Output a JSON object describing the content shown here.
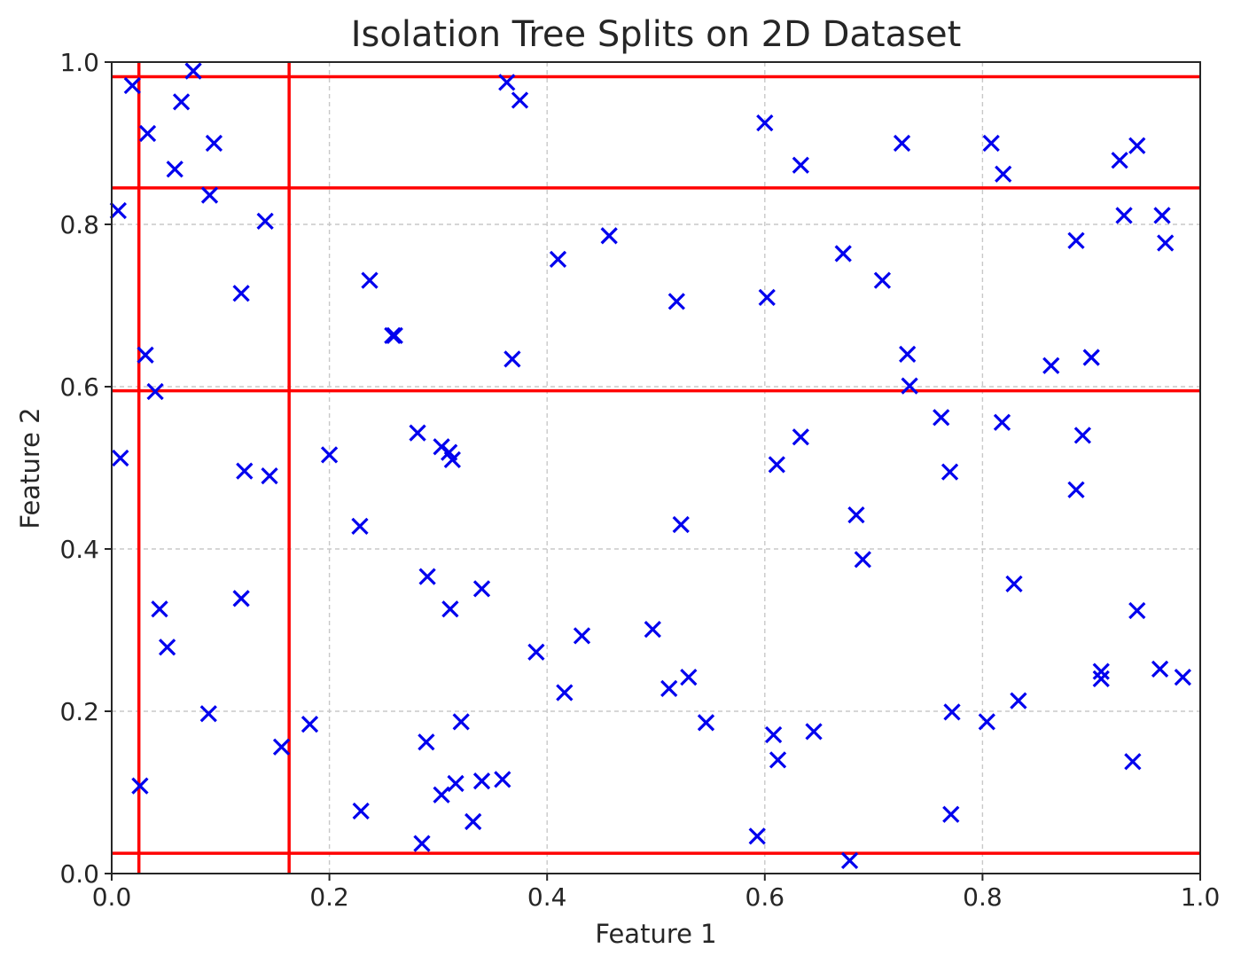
{
  "chart_data": {
    "type": "scatter",
    "title": "Isolation Tree Splits on 2D Dataset",
    "xlabel": "Feature 1",
    "ylabel": "Feature 2",
    "xlim": [
      0.0,
      1.0
    ],
    "ylim": [
      0.0,
      1.0
    ],
    "xticks": [
      "0.0",
      "0.2",
      "0.4",
      "0.6",
      "0.8",
      "1.0"
    ],
    "yticks": [
      "0.0",
      "0.2",
      "0.4",
      "0.6",
      "0.8",
      "1.0"
    ],
    "grid": true,
    "marker": "x",
    "colors": {
      "points": "#0000ee",
      "splits": "#ff0000",
      "grid": "#c8c8c8"
    },
    "vertical_splits": [
      0.025,
      0.163
    ],
    "horizontal_splits": [
      0.025,
      0.595,
      0.845,
      0.982
    ],
    "points": [
      [
        0.019,
        0.971
      ],
      [
        0.075,
        0.989
      ],
      [
        0.033,
        0.912
      ],
      [
        0.064,
        0.951
      ],
      [
        0.094,
        0.9
      ],
      [
        0.058,
        0.868
      ],
      [
        0.006,
        0.817
      ],
      [
        0.09,
        0.836
      ],
      [
        0.141,
        0.804
      ],
      [
        0.119,
        0.715
      ],
      [
        0.031,
        0.639
      ],
      [
        0.04,
        0.594
      ],
      [
        0.008,
        0.512
      ],
      [
        0.122,
        0.496
      ],
      [
        0.145,
        0.49
      ],
      [
        0.2,
        0.516
      ],
      [
        0.228,
        0.428
      ],
      [
        0.237,
        0.731
      ],
      [
        0.258,
        0.663
      ],
      [
        0.26,
        0.663
      ],
      [
        0.363,
        0.975
      ],
      [
        0.375,
        0.953
      ],
      [
        0.368,
        0.634
      ],
      [
        0.41,
        0.757
      ],
      [
        0.457,
        0.786
      ],
      [
        0.519,
        0.705
      ],
      [
        0.6,
        0.925
      ],
      [
        0.602,
        0.71
      ],
      [
        0.633,
        0.873
      ],
      [
        0.672,
        0.764
      ],
      [
        0.708,
        0.731
      ],
      [
        0.726,
        0.9
      ],
      [
        0.731,
        0.64
      ],
      [
        0.733,
        0.601
      ],
      [
        0.808,
        0.9
      ],
      [
        0.819,
        0.862
      ],
      [
        0.886,
        0.78
      ],
      [
        0.926,
        0.879
      ],
      [
        0.93,
        0.811
      ],
      [
        0.942,
        0.897
      ],
      [
        0.965,
        0.811
      ],
      [
        0.968,
        0.777
      ],
      [
        0.863,
        0.626
      ],
      [
        0.9,
        0.636
      ],
      [
        0.044,
        0.326
      ],
      [
        0.051,
        0.279
      ],
      [
        0.119,
        0.339
      ],
      [
        0.089,
        0.197
      ],
      [
        0.026,
        0.108
      ],
      [
        0.156,
        0.156
      ],
      [
        0.182,
        0.184
      ],
      [
        0.229,
        0.077
      ],
      [
        0.281,
        0.543
      ],
      [
        0.303,
        0.526
      ],
      [
        0.31,
        0.519
      ],
      [
        0.313,
        0.51
      ],
      [
        0.29,
        0.366
      ],
      [
        0.311,
        0.326
      ],
      [
        0.34,
        0.351
      ],
      [
        0.39,
        0.273
      ],
      [
        0.432,
        0.293
      ],
      [
        0.416,
        0.223
      ],
      [
        0.289,
        0.162
      ],
      [
        0.321,
        0.187
      ],
      [
        0.316,
        0.111
      ],
      [
        0.303,
        0.097
      ],
      [
        0.34,
        0.114
      ],
      [
        0.359,
        0.116
      ],
      [
        0.332,
        0.064
      ],
      [
        0.285,
        0.037
      ],
      [
        0.497,
        0.301
      ],
      [
        0.512,
        0.228
      ],
      [
        0.53,
        0.242
      ],
      [
        0.523,
        0.43
      ],
      [
        0.546,
        0.186
      ],
      [
        0.611,
        0.504
      ],
      [
        0.633,
        0.538
      ],
      [
        0.608,
        0.171
      ],
      [
        0.612,
        0.14
      ],
      [
        0.645,
        0.175
      ],
      [
        0.593,
        0.046
      ],
      [
        0.678,
        0.016
      ],
      [
        0.684,
        0.442
      ],
      [
        0.69,
        0.387
      ],
      [
        0.762,
        0.562
      ],
      [
        0.77,
        0.495
      ],
      [
        0.772,
        0.199
      ],
      [
        0.771,
        0.073
      ],
      [
        0.804,
        0.187
      ],
      [
        0.818,
        0.556
      ],
      [
        0.829,
        0.357
      ],
      [
        0.833,
        0.213
      ],
      [
        0.886,
        0.473
      ],
      [
        0.892,
        0.54
      ],
      [
        0.909,
        0.249
      ],
      [
        0.909,
        0.24
      ],
      [
        0.942,
        0.324
      ],
      [
        0.938,
        0.138
      ],
      [
        0.963,
        0.252
      ],
      [
        0.984,
        0.242
      ]
    ]
  }
}
